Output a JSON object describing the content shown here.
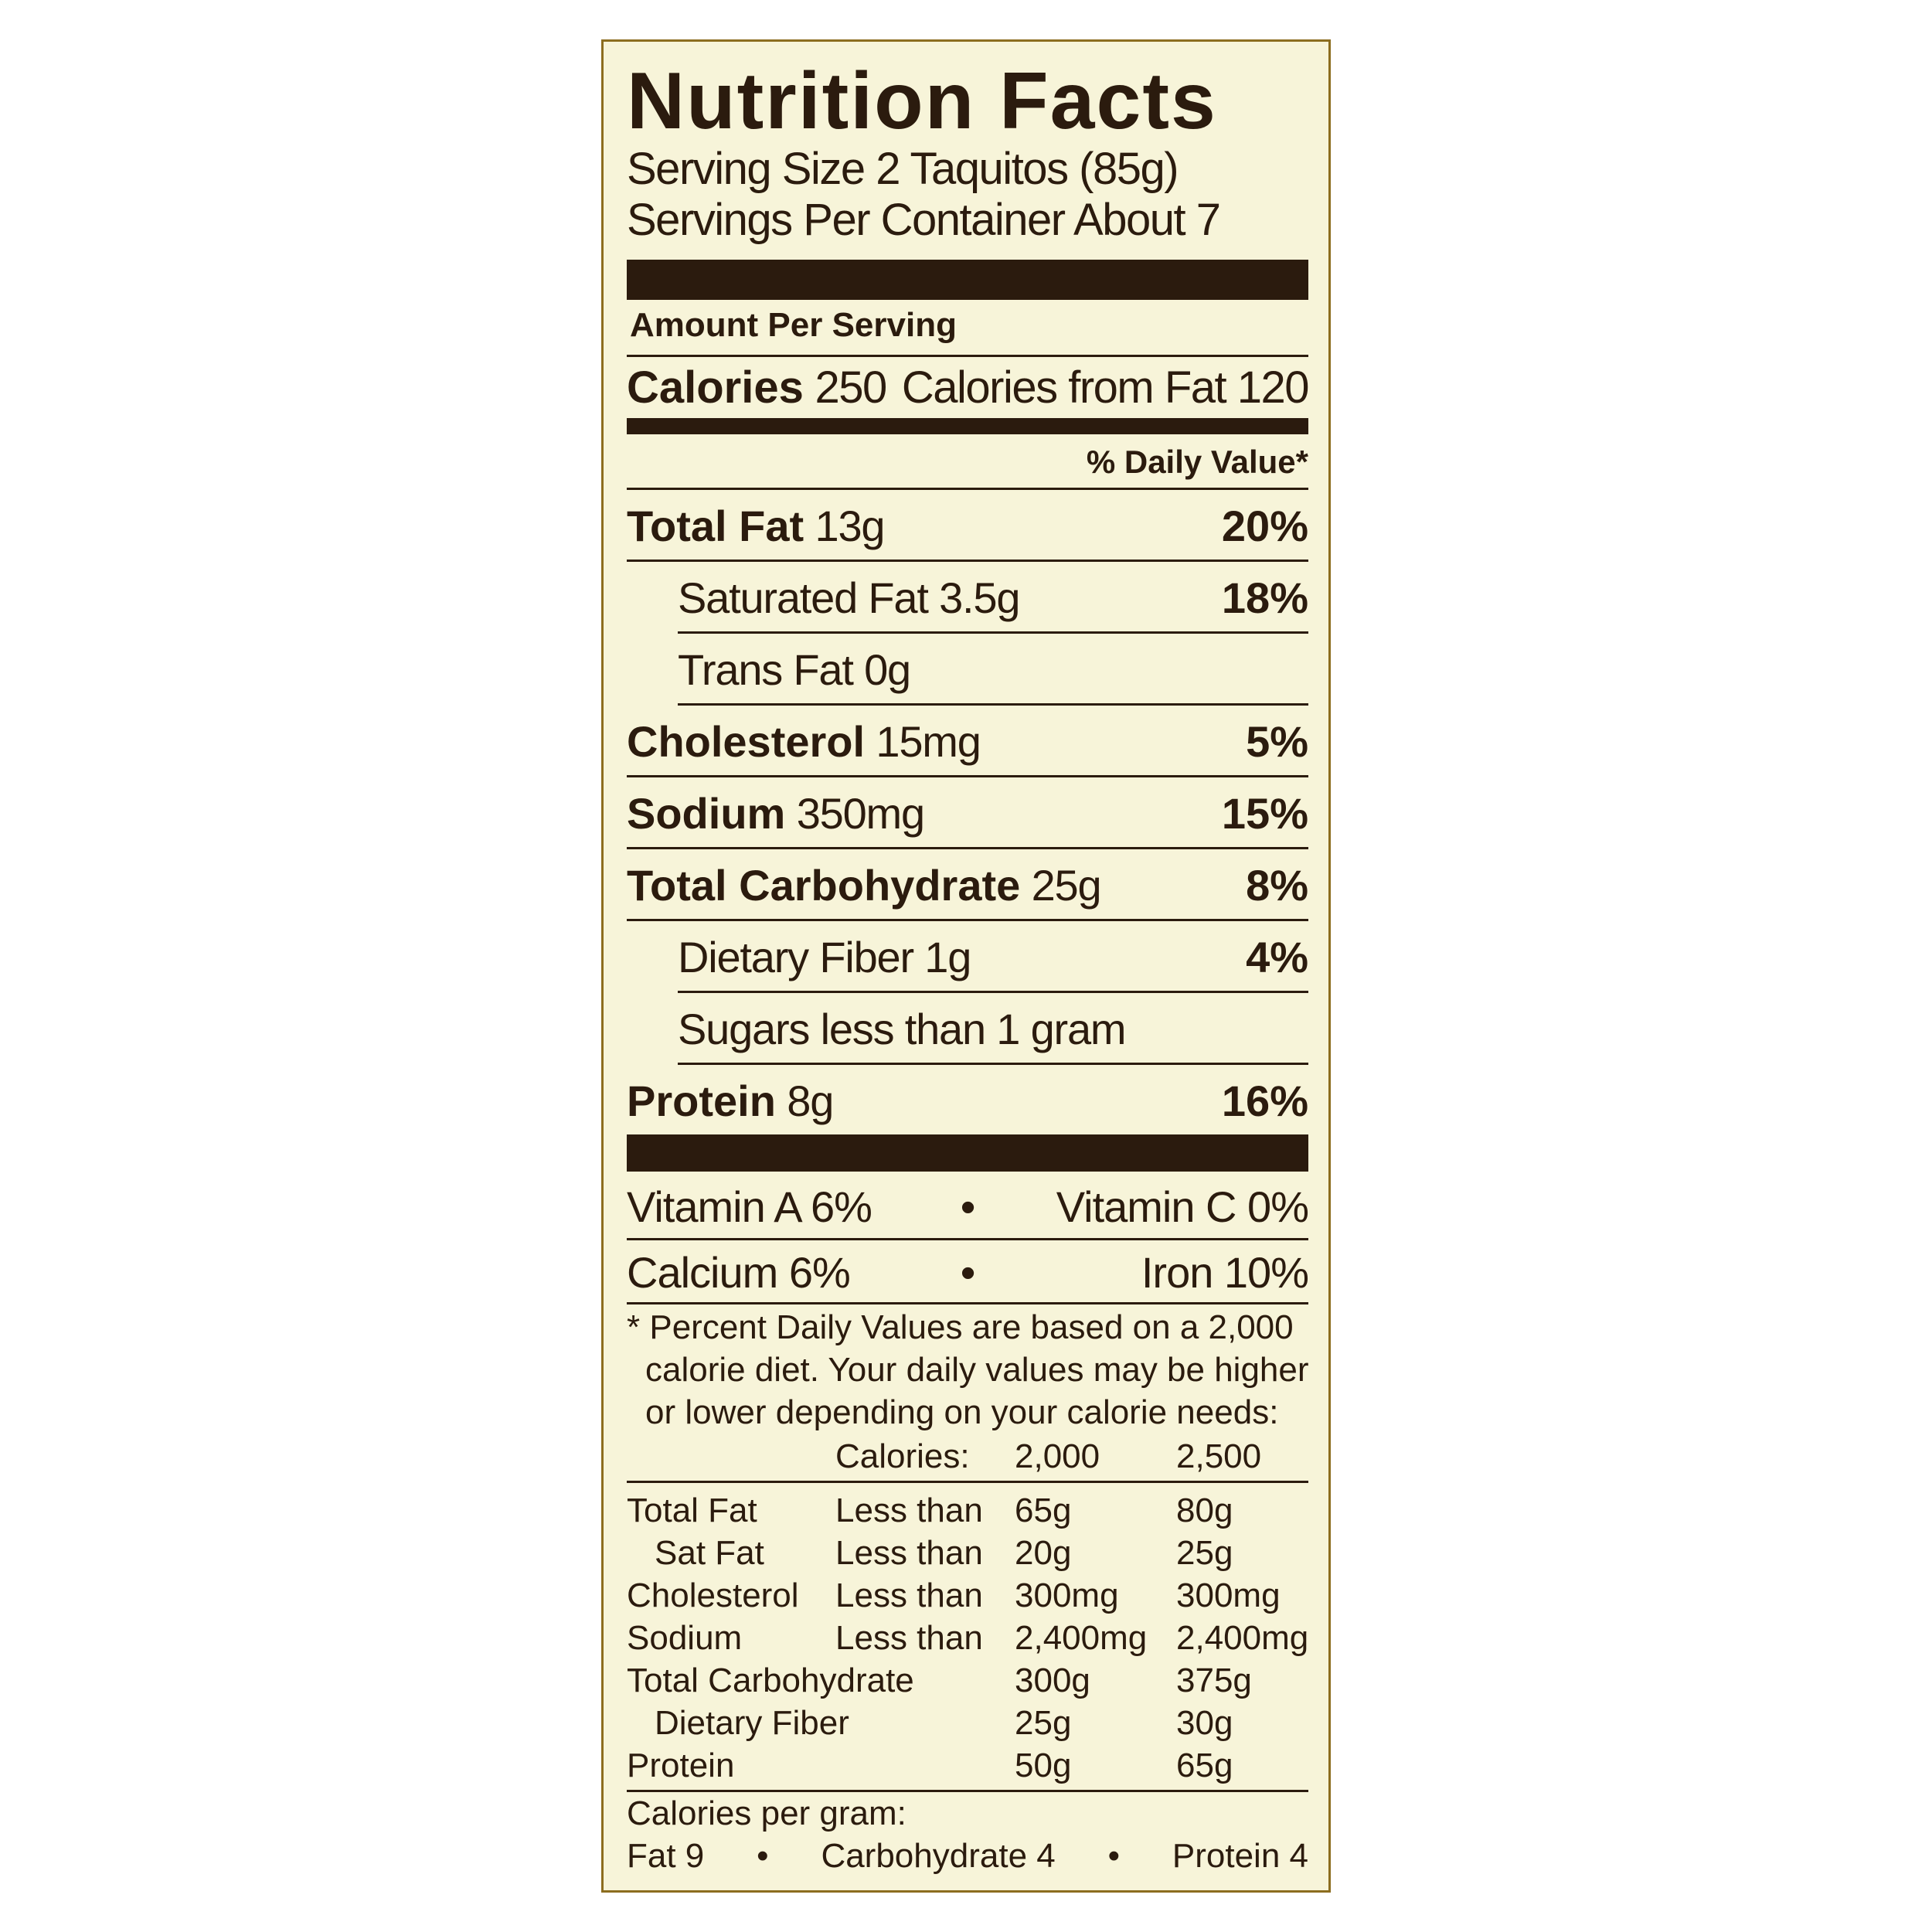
{
  "colors": {
    "text": "#2b1b0e",
    "background": "#f7f4d9",
    "border": "#8c6d1f"
  },
  "title": "Nutrition Facts",
  "serving_size": "Serving Size 2 Taquitos (85g)",
  "servings_per_container": "Servings Per Container About 7",
  "amount_per_serving": "Amount Per Serving",
  "calories": {
    "label": "Calories",
    "value": "250",
    "from_fat": "Calories from Fat 120"
  },
  "daily_value_header": "% Daily Value*",
  "nutrients": [
    {
      "name": "Total Fat",
      "amount": "13g",
      "pct": "20%"
    },
    {
      "name": "Saturated Fat",
      "amount": "3.5g",
      "pct": "18%"
    },
    {
      "name": "Trans Fat",
      "amount": "0g",
      "pct": ""
    },
    {
      "name": "Cholesterol",
      "amount": "15mg",
      "pct": "5%"
    },
    {
      "name": "Sodium",
      "amount": "350mg",
      "pct": "15%"
    },
    {
      "name": "Total Carbohydrate",
      "amount": "25g",
      "pct": "8%"
    },
    {
      "name": "Dietary Fiber",
      "amount": "1g",
      "pct": "4%"
    },
    {
      "name": "Sugars",
      "amount": "less than 1 gram",
      "pct": ""
    },
    {
      "name": "Protein",
      "amount": "8g",
      "pct": "16%"
    }
  ],
  "vitamins": [
    {
      "left": "Vitamin A 6%",
      "right": "Vitamin C 0%"
    },
    {
      "left": "Calcium 6%",
      "right": "Iron 10%"
    }
  ],
  "bullet": "•",
  "footnote": [
    "* Percent Daily Values are based on a 2,000",
    "calorie diet. Your daily values may be higher",
    "or lower depending on your calorie needs:"
  ],
  "dv_table": {
    "header": [
      "",
      "Calories:",
      "2,000",
      "2,500"
    ],
    "rows": [
      [
        "Total Fat",
        "Less than",
        "65g",
        "80g"
      ],
      [
        "Sat Fat",
        "Less than",
        "20g",
        "25g"
      ],
      [
        "Cholesterol",
        "Less than",
        "300mg",
        "300mg"
      ],
      [
        "Sodium",
        "Less than",
        "2,400mg",
        "2,400mg"
      ],
      [
        "Total Carbohydrate",
        "",
        "300g",
        "375g"
      ],
      [
        "Dietary Fiber",
        "",
        "25g",
        "30g"
      ],
      [
        "Protein",
        "",
        "50g",
        "65g"
      ]
    ]
  },
  "calories_per_gram": {
    "label": "Calories per gram:",
    "fat": "Fat 9",
    "carbohydrate": "Carbohydrate 4",
    "protein": "Protein 4"
  }
}
